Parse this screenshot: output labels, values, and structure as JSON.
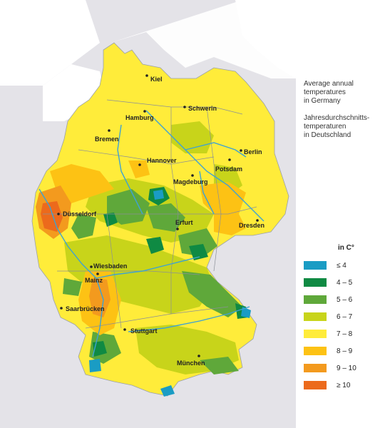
{
  "title": {
    "english": "Average annual\ntemperatures\nin Germany",
    "german": "Jahresdurchschnitts-\ntemperaturen\nin Deutschland"
  },
  "legend": {
    "unit": "in C°",
    "items": [
      {
        "label": "≤ 4",
        "color": "#1a9cc4"
      },
      {
        "label": "4 – 5",
        "color": "#0f8a43"
      },
      {
        "label": "5 – 6",
        "color": "#5fa83a"
      },
      {
        "label": "6 – 7",
        "color": "#c8d41a"
      },
      {
        "label": "7 – 8",
        "color": "#ffec3a"
      },
      {
        "label": "8 – 9",
        "color": "#fdc214"
      },
      {
        "label": "9 – 10",
        "color": "#f39a1e"
      },
      {
        "label": "≥ 10",
        "color": "#ec6a1c"
      }
    ]
  },
  "map": {
    "background_color": "#e4e3e8",
    "river_color": "#3ea2d2",
    "cities": [
      {
        "name": "Kiel"
      },
      {
        "name": "Hamburg"
      },
      {
        "name": "Schwerin"
      },
      {
        "name": "Bremen"
      },
      {
        "name": "Berlin"
      },
      {
        "name": "Hannover"
      },
      {
        "name": "Potsdam"
      },
      {
        "name": "Magdeburg"
      },
      {
        "name": "Düsseldorf"
      },
      {
        "name": "Erfurt"
      },
      {
        "name": "Dresden"
      },
      {
        "name": "Wiesbaden"
      },
      {
        "name": "Mainz"
      },
      {
        "name": "Saarbrücken"
      },
      {
        "name": "Stuttgart"
      },
      {
        "name": "München"
      }
    ]
  }
}
